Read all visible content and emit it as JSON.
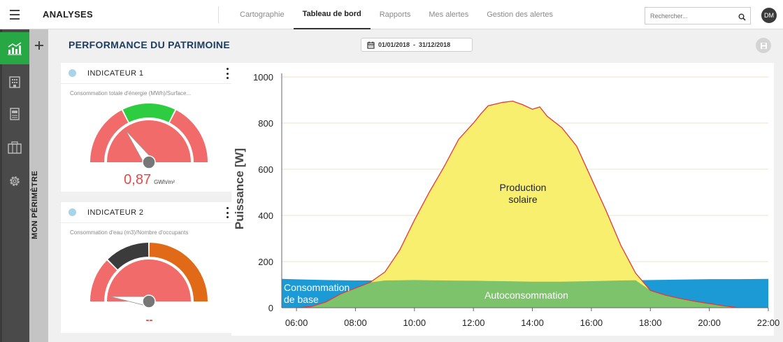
{
  "header": {
    "app_title": "ANALYSES",
    "nav": [
      {
        "label": "Cartographie",
        "active": false
      },
      {
        "label": "Tableau de bord",
        "active": true
      },
      {
        "label": "Rapports",
        "active": false
      },
      {
        "label": "Mes alertes",
        "active": false
      },
      {
        "label": "Gestion des alertes",
        "active": false
      }
    ],
    "search_placeholder": "Rechercher...",
    "avatar_initials": "DM",
    "menu_icon": "hamburger-icon",
    "search_icon": "search-icon"
  },
  "sidebar": {
    "items": [
      {
        "icon": "chart-analytics-icon",
        "active": true
      },
      {
        "icon": "building-icon",
        "active": false
      },
      {
        "icon": "document-icon",
        "active": false
      },
      {
        "icon": "briefcase-icon",
        "active": false
      },
      {
        "icon": "gear-icon",
        "active": false
      }
    ],
    "active_color": "#27a844"
  },
  "perimeter": {
    "label": "MON PÉRIMÈTRE",
    "add_icon": "plus-icon"
  },
  "page": {
    "title": "PERFORMANCE DU PATRIMOINE",
    "date_range": "01/01/2018  -  31/12/2018",
    "calendar_icon": "calendar-icon",
    "save_icon": "floppy-disk-icon"
  },
  "indicators": [
    {
      "title": "INDICATEUR 1",
      "subtitle": "Consommation totale d'énergie (MWh)/Surface...",
      "value": "0,87",
      "unit": "GWh/m²",
      "gauge_segments": [
        {
          "color": "#f26b6b",
          "share": 0.35
        },
        {
          "color": "#2ecc40",
          "share": 0.3
        },
        {
          "color": "#f26b6b",
          "share": 0.35
        }
      ],
      "needle_level": 0.3
    },
    {
      "title": "INDICATEUR 2",
      "subtitle": "Consommation d'eau (m3)/Nombre d'occupants",
      "value": "--",
      "gauge_segments": [
        {
          "color": "#f26b6b",
          "share": 0.25
        },
        {
          "color": "#3b3b3b",
          "share": 0.25
        },
        {
          "color": "#e06a17",
          "share": 0.5
        }
      ],
      "needle_level": 0.04
    }
  ],
  "chart_data": {
    "type": "area",
    "title": "",
    "xlabel": "",
    "ylabel": "Puissance [W]",
    "xlim": [
      "05:30",
      "22:00"
    ],
    "ylim": [
      0,
      1000
    ],
    "x_ticks": [
      "06:00",
      "08:00",
      "10:00",
      "12:00",
      "14:00",
      "16:00",
      "18:00",
      "20:00",
      "22:00"
    ],
    "y_ticks": [
      0,
      200,
      400,
      600,
      800,
      1000
    ],
    "grid": "horizontal",
    "series": [
      {
        "name": "Consommation de base",
        "color": "#1c9ad6",
        "x": [
          "05:30",
          "06:00",
          "07:00",
          "08:00",
          "09:00",
          "10:00",
          "11:00",
          "12:00",
          "13:00",
          "14:00",
          "15:00",
          "16:00",
          "17:00",
          "18:00",
          "19:00",
          "20:00",
          "21:00",
          "22:00"
        ],
        "values": [
          125,
          123,
          120,
          118,
          118,
          120,
          118,
          117,
          115,
          113,
          113,
          115,
          118,
          120,
          122,
          124,
          124,
          125
        ]
      },
      {
        "name": "Production solaire",
        "color": "#f7ef6d",
        "line_color": "#e5383b",
        "x": [
          "06:00",
          "06:30",
          "07:00",
          "07:30",
          "08:00",
          "08:30",
          "09:00",
          "09:30",
          "10:00",
          "10:30",
          "11:00",
          "11:30",
          "12:00",
          "12:15",
          "12:30",
          "13:00",
          "13:20",
          "13:40",
          "14:00",
          "14:15",
          "14:30",
          "15:00",
          "15:30",
          "16:00",
          "16:30",
          "17:00",
          "17:30",
          "18:00",
          "18:30",
          "19:00",
          "19:30",
          "20:00",
          "20:30",
          "21:00"
        ],
        "values": [
          0,
          5,
          25,
          60,
          85,
          110,
          155,
          250,
          380,
          500,
          610,
          730,
          800,
          840,
          875,
          890,
          895,
          880,
          860,
          870,
          830,
          780,
          700,
          560,
          420,
          270,
          150,
          75,
          55,
          40,
          28,
          18,
          8,
          0
        ]
      },
      {
        "name": "Autoconsommation",
        "color": "#7cc36b"
      }
    ]
  }
}
